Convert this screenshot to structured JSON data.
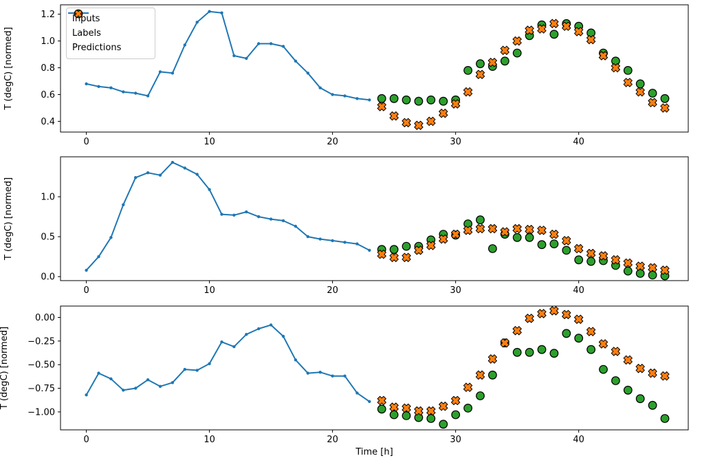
{
  "figure": {
    "background": "#ffffff",
    "colors": {
      "inputs": "#1f77b4",
      "labels": "#2ca02c",
      "predictions": "#ff7f0e",
      "marker_edge": "#000000",
      "axis": "#000000"
    },
    "legend": {
      "items": [
        {
          "label": "Inputs",
          "type": "line-dot"
        },
        {
          "label": "Labels",
          "type": "circle"
        },
        {
          "label": "Predictions",
          "type": "x"
        }
      ]
    }
  },
  "chart_data": [
    {
      "type": "line",
      "subtype": "line+scatter",
      "title": "",
      "xlabel": "",
      "ylabel": "T (degC) [normed]",
      "xlim": [
        -2.1,
        48.9
      ],
      "ylim": [
        0.32,
        1.27
      ],
      "xticks": [
        0,
        10,
        20,
        30,
        40
      ],
      "xtick_labels": [
        "0",
        "10",
        "20",
        "30",
        "40"
      ],
      "yticks": [
        0.4,
        0.6,
        0.8,
        1.0,
        1.2
      ],
      "ytick_labels": [
        "0.4",
        "0.6",
        "0.8",
        "1.0",
        "1.2"
      ],
      "grid": false,
      "legend_position": "upper-left",
      "series": [
        {
          "name": "Inputs",
          "style": "line",
          "color_key": "inputs",
          "x": [
            0,
            1,
            2,
            3,
            4,
            5,
            6,
            7,
            8,
            9,
            10,
            11,
            12,
            13,
            14,
            15,
            16,
            17,
            18,
            19,
            20,
            21,
            22,
            23
          ],
          "y": [
            0.68,
            0.66,
            0.65,
            0.62,
            0.61,
            0.59,
            0.77,
            0.76,
            0.97,
            1.14,
            1.22,
            1.21,
            0.89,
            0.87,
            0.98,
            0.98,
            0.96,
            0.85,
            0.76,
            0.65,
            0.6,
            0.59,
            0.57,
            0.56
          ]
        },
        {
          "name": "Labels",
          "style": "circle",
          "color_key": "labels",
          "x": [
            24,
            25,
            26,
            27,
            28,
            29,
            30,
            31,
            32,
            33,
            34,
            35,
            36,
            37,
            38,
            39,
            40,
            41,
            42,
            43,
            44,
            45,
            46,
            47
          ],
          "y": [
            0.57,
            0.57,
            0.56,
            0.55,
            0.56,
            0.55,
            0.56,
            0.78,
            0.83,
            0.81,
            0.85,
            0.91,
            1.04,
            1.12,
            1.05,
            1.13,
            1.11,
            1.06,
            0.91,
            0.85,
            0.78,
            0.68,
            0.61,
            0.57
          ]
        },
        {
          "name": "Predictions",
          "style": "x",
          "color_key": "predictions",
          "x": [
            24,
            25,
            26,
            27,
            28,
            29,
            30,
            31,
            32,
            33,
            34,
            35,
            36,
            37,
            38,
            39,
            40,
            41,
            42,
            43,
            44,
            45,
            46,
            47
          ],
          "y": [
            0.51,
            0.44,
            0.39,
            0.37,
            0.4,
            0.46,
            0.53,
            0.62,
            0.75,
            0.84,
            0.93,
            1.0,
            1.08,
            1.09,
            1.13,
            1.11,
            1.07,
            1.01,
            0.89,
            0.8,
            0.69,
            0.62,
            0.54,
            0.5
          ]
        }
      ]
    },
    {
      "type": "line",
      "subtype": "line+scatter",
      "title": "",
      "xlabel": "",
      "ylabel": "T (degC) [normed]",
      "xlim": [
        -2.1,
        48.9
      ],
      "ylim": [
        -0.05,
        1.5
      ],
      "xticks": [
        0,
        10,
        20,
        30,
        40
      ],
      "xtick_labels": [
        "0",
        "10",
        "20",
        "30",
        "40"
      ],
      "yticks": [
        0.0,
        0.5,
        1.0
      ],
      "ytick_labels": [
        "0.0",
        "0.5",
        "1.0"
      ],
      "grid": false,
      "legend_position": "none",
      "series": [
        {
          "name": "Inputs",
          "style": "line",
          "color_key": "inputs",
          "x": [
            0,
            1,
            2,
            3,
            4,
            5,
            6,
            7,
            8,
            9,
            10,
            11,
            12,
            13,
            14,
            15,
            16,
            17,
            18,
            19,
            20,
            21,
            22,
            23
          ],
          "y": [
            0.08,
            0.25,
            0.49,
            0.9,
            1.24,
            1.3,
            1.27,
            1.43,
            1.36,
            1.28,
            1.09,
            0.78,
            0.77,
            0.81,
            0.75,
            0.72,
            0.7,
            0.63,
            0.5,
            0.47,
            0.45,
            0.43,
            0.41,
            0.33
          ]
        },
        {
          "name": "Labels",
          "style": "circle",
          "color_key": "labels",
          "x": [
            24,
            25,
            26,
            27,
            28,
            29,
            30,
            31,
            32,
            33,
            34,
            35,
            36,
            37,
            38,
            39,
            40,
            41,
            42,
            43,
            44,
            45,
            46,
            47
          ],
          "y": [
            0.34,
            0.34,
            0.38,
            0.38,
            0.46,
            0.53,
            0.52,
            0.66,
            0.71,
            0.35,
            0.53,
            0.49,
            0.49,
            0.4,
            0.41,
            0.33,
            0.21,
            0.19,
            0.2,
            0.14,
            0.07,
            0.04,
            0.02,
            0.01
          ]
        },
        {
          "name": "Predictions",
          "style": "x",
          "color_key": "predictions",
          "x": [
            24,
            25,
            26,
            27,
            28,
            29,
            30,
            31,
            32,
            33,
            34,
            35,
            36,
            37,
            38,
            39,
            40,
            41,
            42,
            43,
            44,
            45,
            46,
            47
          ],
          "y": [
            0.28,
            0.24,
            0.24,
            0.33,
            0.39,
            0.47,
            0.53,
            0.58,
            0.6,
            0.6,
            0.56,
            0.6,
            0.59,
            0.58,
            0.53,
            0.45,
            0.35,
            0.29,
            0.26,
            0.21,
            0.17,
            0.13,
            0.11,
            0.08
          ]
        }
      ]
    },
    {
      "type": "line",
      "subtype": "line+scatter",
      "title": "",
      "xlabel": "Time [h]",
      "ylabel": "T (degC) [normed]",
      "xlim": [
        -2.1,
        48.9
      ],
      "ylim": [
        -1.19,
        0.12
      ],
      "xticks": [
        0,
        10,
        20,
        30,
        40
      ],
      "xtick_labels": [
        "0",
        "10",
        "20",
        "30",
        "40"
      ],
      "yticks": [
        0.0,
        -0.25,
        -0.5,
        -0.75,
        -1.0
      ],
      "ytick_labels": [
        "0.00",
        "−0.25",
        "−0.50",
        "−0.75",
        "−1.00"
      ],
      "grid": false,
      "legend_position": "none",
      "series": [
        {
          "name": "Inputs",
          "style": "line",
          "color_key": "inputs",
          "x": [
            0,
            1,
            2,
            3,
            4,
            5,
            6,
            7,
            8,
            9,
            10,
            11,
            12,
            13,
            14,
            15,
            16,
            17,
            18,
            19,
            20,
            21,
            22,
            23
          ],
          "y": [
            -0.82,
            -0.59,
            -0.65,
            -0.77,
            -0.75,
            -0.66,
            -0.73,
            -0.69,
            -0.55,
            -0.56,
            -0.49,
            -0.26,
            -0.31,
            -0.18,
            -0.12,
            -0.08,
            -0.2,
            -0.45,
            -0.59,
            -0.58,
            -0.62,
            -0.62,
            -0.8,
            -0.89
          ]
        },
        {
          "name": "Labels",
          "style": "circle",
          "color_key": "labels",
          "x": [
            24,
            25,
            26,
            27,
            28,
            29,
            30,
            31,
            32,
            33,
            34,
            35,
            36,
            37,
            38,
            39,
            40,
            41,
            42,
            43,
            44,
            45,
            46,
            47
          ],
          "y": [
            -0.97,
            -1.03,
            -1.04,
            -1.06,
            -1.07,
            -1.13,
            -1.03,
            -0.96,
            -0.83,
            -0.61,
            -0.27,
            -0.37,
            -0.37,
            -0.34,
            -0.38,
            -0.17,
            -0.22,
            -0.34,
            -0.55,
            -0.67,
            -0.77,
            -0.86,
            -0.93,
            -1.07
          ]
        },
        {
          "name": "Predictions",
          "style": "x",
          "color_key": "predictions",
          "x": [
            24,
            25,
            26,
            27,
            28,
            29,
            30,
            31,
            32,
            33,
            34,
            35,
            36,
            37,
            38,
            39,
            40,
            41,
            42,
            43,
            44,
            45,
            46,
            47
          ],
          "y": [
            -0.88,
            -0.95,
            -0.96,
            -0.99,
            -0.99,
            -0.94,
            -0.88,
            -0.74,
            -0.61,
            -0.44,
            -0.27,
            -0.14,
            -0.01,
            0.04,
            0.07,
            0.03,
            -0.02,
            -0.15,
            -0.28,
            -0.36,
            -0.45,
            -0.54,
            -0.59,
            -0.62
          ]
        }
      ]
    }
  ]
}
